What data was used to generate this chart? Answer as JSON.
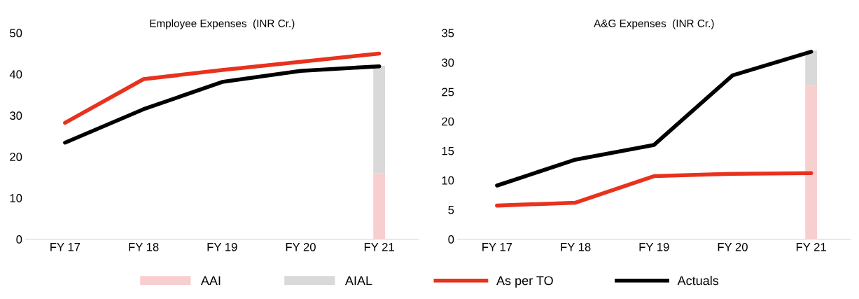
{
  "chart_data": [
    {
      "type": "line",
      "title": "Employee Expenses  (INR Cr.)",
      "categories": [
        "FY 17",
        "FY 18",
        "FY 19",
        "FY 20",
        "FY 21"
      ],
      "ylim": [
        0,
        50
      ],
      "yticks": [
        0,
        10,
        20,
        30,
        40,
        50
      ],
      "stacked": true,
      "grid": false,
      "legend": "bottom",
      "series": [
        {
          "name": "AAI",
          "type": "bar",
          "color": "#f8cfcf",
          "values": [
            null,
            null,
            null,
            null,
            16
          ]
        },
        {
          "name": "AIAL",
          "type": "bar",
          "color": "#d9d9d9",
          "values": [
            null,
            null,
            null,
            null,
            26
          ]
        },
        {
          "name": "As per TO",
          "color": "#e8321e",
          "values": [
            28.2,
            38.8,
            41,
            43,
            45
          ]
        },
        {
          "name": "Actuals",
          "color": "#000000",
          "values": [
            23.4,
            31.5,
            38.1,
            40.8,
            41.9
          ]
        }
      ]
    },
    {
      "type": "line",
      "title": "A&G Expenses  (INR Cr.)",
      "categories": [
        "FY 17",
        "FY 18",
        "FY 19",
        "FY 20",
        "FY 21"
      ],
      "ylim": [
        0,
        35
      ],
      "yticks": [
        0,
        5,
        10,
        15,
        20,
        25,
        30,
        35
      ],
      "stacked": true,
      "grid": false,
      "legend": "bottom",
      "series": [
        {
          "name": "AAI",
          "type": "bar",
          "color": "#f8cfcf",
          "values": [
            null,
            null,
            null,
            null,
            26
          ]
        },
        {
          "name": "AIAL",
          "type": "bar",
          "color": "#d9d9d9",
          "values": [
            null,
            null,
            null,
            null,
            6
          ]
        },
        {
          "name": "As per TO",
          "color": "#e8321e",
          "values": [
            5.7,
            6.2,
            10.7,
            11.1,
            11.2
          ]
        },
        {
          "name": "Actuals",
          "color": "#000000",
          "values": [
            9.1,
            13.5,
            16.0,
            27.8,
            31.8
          ]
        }
      ]
    }
  ]
}
